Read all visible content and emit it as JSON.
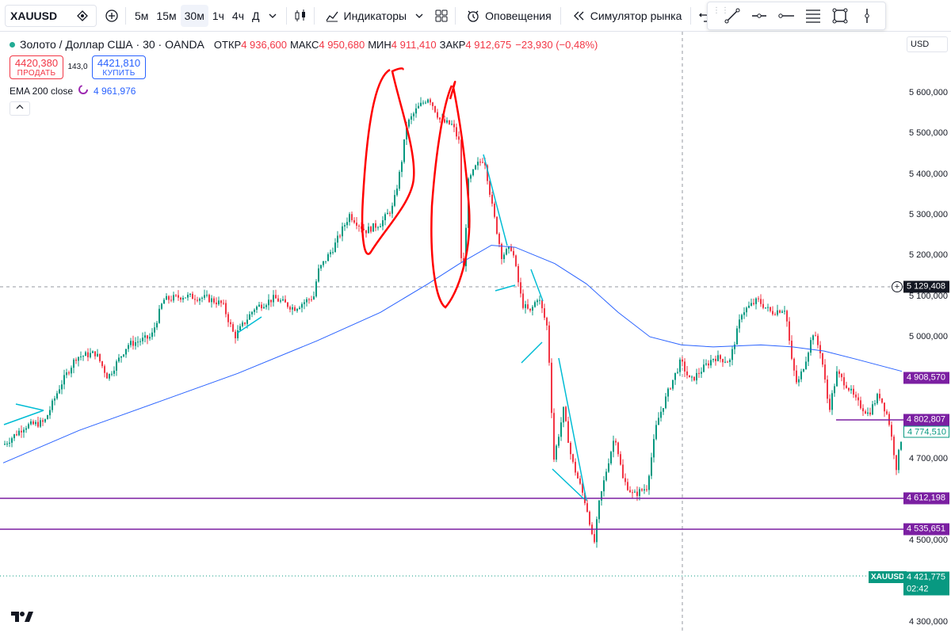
{
  "toolbar": {
    "symbol": "XAUUSD",
    "intervals": [
      "5м",
      "15м",
      "30м",
      "1ч",
      "4ч",
      "Д"
    ],
    "active_interval": "30м",
    "indicators_label": "Индикаторы",
    "alerts_label": "Оповещения",
    "replay_label": "Симулятор рынка"
  },
  "legend": {
    "title": "Золото / Доллар США · 30 · OANDA",
    "open_label": "ОТКР",
    "open_value": "4 936,600",
    "high_label": "МАКС",
    "high_value": "4 950,680",
    "low_label": "МИН",
    "low_value": "4 911,410",
    "close_label": "ЗАКР",
    "close_value": "4 912,675",
    "change": "−23,930 (−0,48%)"
  },
  "trade": {
    "sell_price": "4420,380",
    "sell_label": "ПРОДАТЬ",
    "spread": "143,0",
    "buy_price": "4421,810",
    "buy_label": "КУПИТЬ"
  },
  "ema": {
    "label": "EMA 200 close",
    "value": "4 961,976"
  },
  "price_scale": {
    "currency": "USD",
    "ticks": [
      5600000,
      5500000,
      5400000,
      5300000,
      5200000,
      5100000,
      5000000,
      4700000,
      4500000,
      4300000
    ],
    "tick_labels": [
      "5 600,000",
      "5 500,000",
      "5 400,000",
      "5 300,000",
      "5 200,000",
      "5 100,000",
      "5 000,000",
      "4 700,000",
      "4 500,000",
      "4 300,000"
    ],
    "crosshair_price": "5 129,408",
    "ema_price": "4 908,570",
    "level1_price": "4 802,807",
    "last_price_label": "4 774,510",
    "level2_price": "4 612,198",
    "level3_price": "4 535,651",
    "current_price": "4 421,775",
    "countdown": "02:42",
    "symbol_tag": "XAUUSD"
  },
  "colors": {
    "up": "#089981",
    "down": "#f23645",
    "ema": "#2962ff",
    "levels": "#7b1fa2",
    "annotation": "#ff0000",
    "trendline": "#00bcd4"
  },
  "logo": "TV"
}
